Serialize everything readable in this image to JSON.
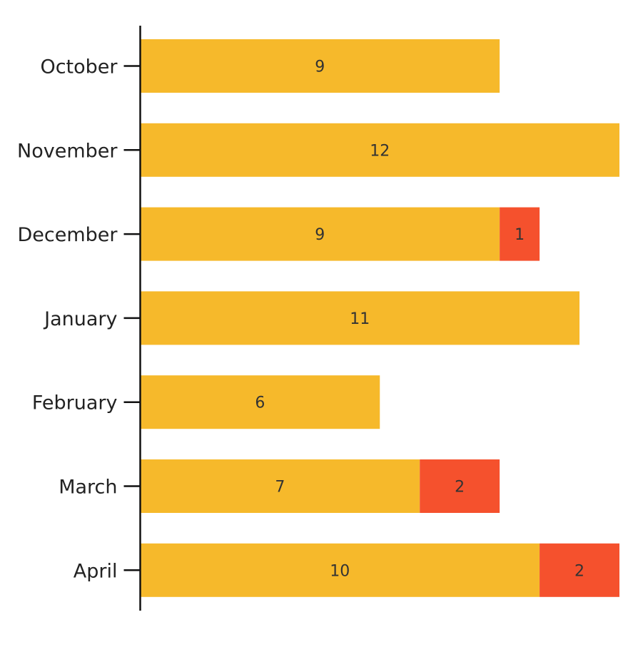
{
  "chart_data": {
    "type": "bar",
    "orientation": "horizontal",
    "stacked": true,
    "categories": [
      "October",
      "November",
      "December",
      "January",
      "February",
      "March",
      "April"
    ],
    "series": [
      {
        "values": [
          9,
          12,
          9,
          11,
          6,
          7,
          10
        ],
        "color": "#F6B92B"
      },
      {
        "values": [
          0,
          0,
          1,
          0,
          0,
          2,
          2
        ],
        "color": "#F5512D"
      }
    ],
    "xlim": [
      0,
      12
    ],
    "grid": false,
    "legend": "none",
    "data_labels": true
  }
}
